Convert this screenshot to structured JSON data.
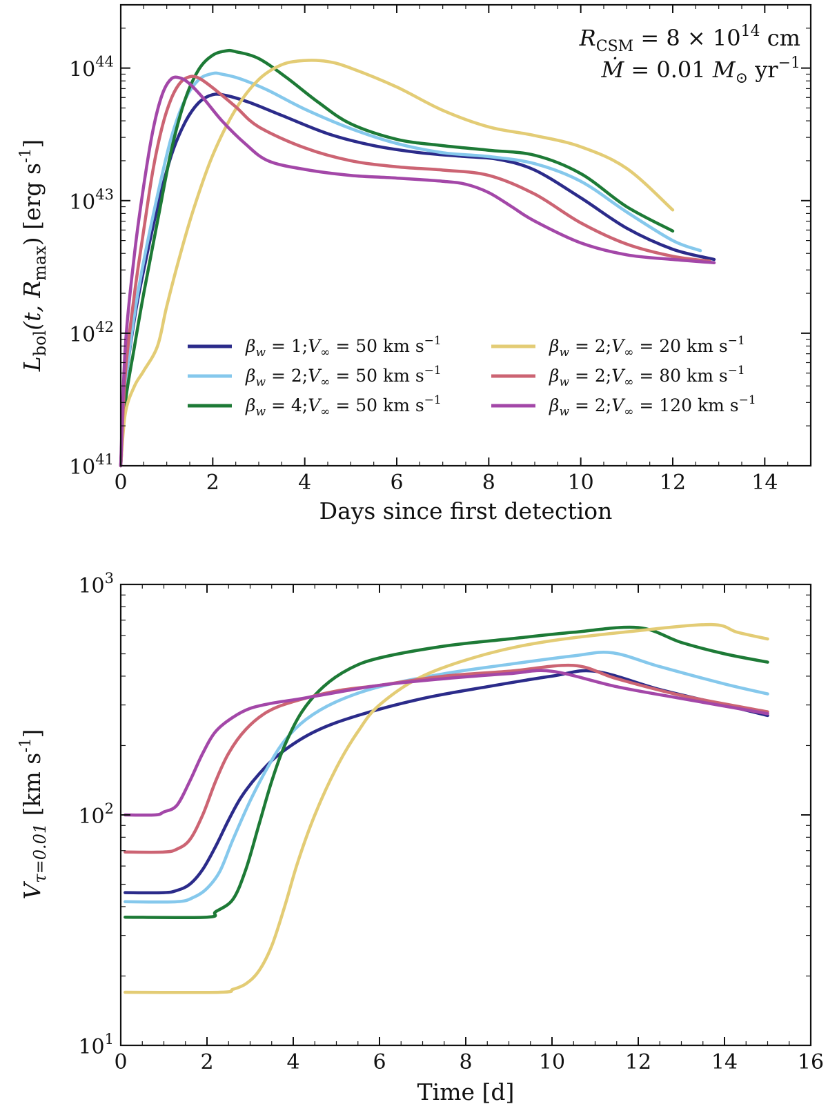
{
  "chart_data": [
    {
      "type": "line",
      "panel": "top",
      "xlabel": "Days since first detection",
      "ylabel": "L_bol(t, R_max) [erg s^-1]",
      "ylabel_parts": {
        "main": "L",
        "sub": "bol",
        "args": "(t, R",
        "args_sub": "max",
        "unit": ") [erg s",
        "exp": "-1",
        "close": "]"
      },
      "xlim": [
        0,
        15
      ],
      "ylim": [
        1e+41,
        3e+44
      ],
      "yscale": "log",
      "x_ticks": [
        0,
        2,
        4,
        6,
        8,
        10,
        12,
        14
      ],
      "x_tick_labels": [
        "0",
        "2",
        "4",
        "6",
        "8",
        "10",
        "12",
        "14"
      ],
      "y_ticks": [
        {
          "value": 1e+41,
          "base": "10",
          "exp": "41"
        },
        {
          "value": 1e+42,
          "base": "10",
          "exp": "42"
        },
        {
          "value": 1e+43,
          "base": "10",
          "exp": "43"
        },
        {
          "value": 1e+44,
          "base": "10",
          "exp": "44"
        }
      ],
      "annotations": [
        {
          "main": "R",
          "sub": "CSM",
          "text": " = 8 × 10",
          "sup": "14",
          "tail": " cm"
        },
        {
          "main": "Ṁ",
          "text": " = 0.01 ",
          "main2": "M",
          "sub": "⊙",
          "tail": " yr",
          "sup": "−1"
        }
      ],
      "legend_placement": "lower-center",
      "series": [
        {
          "name": "β_w = 1; V_∞ = 50 km s^-1",
          "label": {
            "beta": "1",
            "v": "50"
          },
          "color": "#2b2b8a",
          "x": [
            0,
            0.1,
            0.3,
            0.5,
            0.8,
            1.1,
            1.4,
            1.7,
            2.0,
            2.3,
            2.8,
            3.5,
            4.5,
            5.5,
            6.5,
            7.5,
            8.2,
            9.0,
            10.0,
            11.0,
            12.0,
            12.9
          ],
          "y": [
            1e+41,
            4e+41,
            1.3e+42,
            3e+42,
            9e+42,
            2.2e+43,
            3.9e+43,
            5.5e+43,
            6.3e+43,
            6.2e+43,
            5.5e+43,
            4.4e+43,
            3.2e+43,
            2.6e+43,
            2.3e+43,
            2.15e+43,
            2.05e+43,
            1.7e+43,
            1.05e+43,
            6.2e+42,
            4.3e+42,
            3.6e+42
          ]
        },
        {
          "name": "β_w = 2; V_∞ = 50 km s^-1",
          "label": {
            "beta": "2",
            "v": "50"
          },
          "color": "#85c8ec",
          "x": [
            0,
            0.1,
            0.3,
            0.5,
            0.8,
            1.1,
            1.4,
            1.7,
            2.0,
            2.2,
            2.6,
            3.2,
            4.0,
            5.0,
            6.0,
            7.0,
            8.0,
            9.0,
            10.0,
            11.0,
            12.0,
            12.6
          ],
          "y": [
            1e+41,
            4e+41,
            1.4e+42,
            3.5e+42,
            1.1e+43,
            3e+43,
            5.8e+43,
            8.2e+43,
            9.1e+43,
            9e+43,
            8.3e+43,
            6.8e+43,
            4.9e+43,
            3.5e+43,
            2.7e+43,
            2.3e+43,
            2.15e+43,
            1.9e+43,
            1.4e+43,
            8.2e+42,
            5e+42,
            4.2e+42
          ]
        },
        {
          "name": "β_w = 4; V_∞ = 50 km s^-1",
          "label": {
            "beta": "4",
            "v": "50"
          },
          "color": "#1d7a36",
          "x": [
            0,
            0.1,
            0.3,
            0.5,
            0.8,
            1.1,
            1.4,
            1.7,
            2.0,
            2.3,
            2.5,
            3.0,
            3.6,
            4.3,
            5.0,
            6.0,
            7.0,
            8.0,
            9.0,
            10.0,
            11.0,
            12.0
          ],
          "y": [
            1e+41,
            3e+41,
            8e+41,
            2e+42,
            7e+42,
            2.4e+43,
            5.8e+43,
            9.8e+43,
            1.25e+44,
            1.35e+44,
            1.33e+44,
            1.18e+44,
            8.5e+43,
            5.5e+43,
            3.8e+43,
            2.9e+43,
            2.6e+43,
            2.4e+43,
            2.2e+43,
            1.6e+43,
            9e+42,
            5.9e+42
          ]
        },
        {
          "name": "β_w = 2; V_∞ = 20 km s^-1",
          "label": {
            "beta": "2",
            "v": "20"
          },
          "color": "#e3cc75",
          "x": [
            0,
            0.1,
            0.3,
            0.5,
            0.8,
            1.0,
            1.3,
            1.6,
            2.0,
            2.5,
            3.0,
            3.5,
            4.0,
            4.5,
            5.0,
            6.0,
            7.0,
            8.0,
            9.0,
            10.0,
            11.0,
            12.0
          ],
          "y": [
            1e+41,
            2.5e+41,
            4e+41,
            5.2e+41,
            8e+41,
            1.6e+42,
            4e+42,
            9e+42,
            2.2e+43,
            4.9e+43,
            8.2e+43,
            1.06e+44,
            1.14e+44,
            1.12e+44,
            1e+44,
            7.2e+43,
            4.8e+43,
            3.6e+43,
            3.1e+43,
            2.55e+43,
            1.75e+43,
            8.5e+42
          ]
        },
        {
          "name": "β_w = 2; V_∞ = 80 km s^-1",
          "label": {
            "beta": "2",
            "v": "80"
          },
          "color": "#cc6473",
          "x": [
            0,
            0.1,
            0.3,
            0.5,
            0.7,
            0.9,
            1.1,
            1.3,
            1.5,
            1.7,
            2.0,
            2.5,
            3.0,
            4.0,
            5.0,
            6.0,
            7.0,
            8.0,
            9.0,
            10.0,
            11.0,
            12.0,
            12.8
          ],
          "y": [
            1e+41,
            5e+41,
            2e+42,
            6e+42,
            1.7e+43,
            3.6e+43,
            5.9e+43,
            7.8e+43,
            8.6e+43,
            8.4e+43,
            7.1e+43,
            5.1e+43,
            3.6e+43,
            2.5e+43,
            2e+43,
            1.8e+43,
            1.7e+43,
            1.55e+43,
            1.12e+43,
            6.8e+42,
            4.7e+42,
            3.8e+42,
            3.5e+42
          ]
        },
        {
          "name": "β_w = 2; V_∞ = 120 km s^-1",
          "label": {
            "beta": "2",
            "v": "120"
          },
          "color": "#a347a8",
          "x": [
            0,
            0.1,
            0.3,
            0.5,
            0.7,
            0.9,
            1.1,
            1.3,
            1.5,
            1.8,
            2.2,
            2.7,
            3.2,
            4.0,
            5.0,
            6.0,
            7.0,
            7.5,
            8.0,
            8.5,
            9.0,
            10.0,
            11.0,
            12.0,
            12.9
          ],
          "y": [
            1e+41,
            8e+41,
            4e+42,
            1.3e+43,
            3.4e+43,
            6.3e+43,
            8.3e+43,
            8.4e+43,
            7.6e+43,
            5.9e+43,
            4e+43,
            2.7e+43,
            2e+43,
            1.72e+43,
            1.55e+43,
            1.48e+43,
            1.4e+43,
            1.33e+43,
            1.15e+43,
            9e+42,
            7e+42,
            4.8e+42,
            3.9e+42,
            3.6e+42,
            3.4e+42
          ]
        }
      ]
    },
    {
      "type": "line",
      "panel": "bottom",
      "xlabel": "Time [d]",
      "ylabel": "V_τ=0.01 [km s^-1]",
      "ylabel_parts": {
        "main": "V",
        "sub": "τ=0.01",
        "unit": " [km s",
        "exp": "-1",
        "close": "]"
      },
      "xlim": [
        0,
        16
      ],
      "ylim": [
        10,
        1000
      ],
      "yscale": "log",
      "x_ticks": [
        0,
        2,
        4,
        6,
        8,
        10,
        12,
        14,
        16
      ],
      "x_tick_labels": [
        "0",
        "2",
        "4",
        "6",
        "8",
        "10",
        "12",
        "14",
        "16"
      ],
      "y_ticks": [
        {
          "value": 10,
          "base": "10",
          "exp": "1"
        },
        {
          "value": 100,
          "base": "10",
          "exp": "2"
        },
        {
          "value": 1000,
          "base": "10",
          "exp": "3"
        }
      ],
      "series": [
        {
          "name": "β_w = 1; V_∞ = 50 km s^-1",
          "color": "#2b2b8a",
          "x": [
            0.1,
            1.0,
            1.3,
            1.6,
            1.9,
            2.2,
            2.5,
            2.8,
            3.2,
            3.7,
            4.5,
            5.5,
            7.0,
            8.5,
            10.0,
            11.0,
            12.5,
            14.0,
            15.0
          ],
          "y": [
            46,
            46,
            47,
            50,
            58,
            73,
            95,
            120,
            150,
            185,
            230,
            270,
            320,
            360,
            400,
            420,
            350,
            300,
            270
          ]
        },
        {
          "name": "β_w = 2; V_∞ = 50 km s^-1",
          "color": "#85c8ec",
          "x": [
            0.1,
            1.3,
            1.7,
            2.0,
            2.3,
            2.6,
            3.0,
            3.4,
            3.8,
            4.3,
            5.0,
            6.0,
            7.5,
            9.0,
            10.5,
            11.4,
            12.5,
            14.0,
            15.0
          ],
          "y": [
            42,
            42,
            44,
            48,
            57,
            78,
            115,
            160,
            210,
            260,
            310,
            360,
            410,
            450,
            490,
            505,
            440,
            370,
            335
          ]
        },
        {
          "name": "β_w = 4; V_∞ = 50 km s^-1",
          "color": "#1d7a36",
          "x": [
            0.1,
            2.0,
            2.2,
            2.6,
            2.9,
            3.2,
            3.5,
            3.8,
            4.2,
            4.7,
            5.3,
            6.0,
            7.5,
            9.0,
            10.5,
            12.0,
            13.0,
            14.0,
            15.0
          ],
          "y": [
            36,
            36,
            38,
            43,
            58,
            90,
            140,
            200,
            280,
            360,
            430,
            480,
            540,
            580,
            620,
            650,
            560,
            500,
            460
          ]
        },
        {
          "name": "β_w = 2; V_∞ = 20 km s^-1",
          "color": "#e3cc75",
          "x": [
            0.1,
            2.3,
            2.6,
            2.9,
            3.2,
            3.5,
            3.8,
            4.1,
            4.5,
            5.0,
            5.5,
            6.0,
            7.0,
            8.5,
            10.0,
            12.0,
            13.7,
            14.3,
            15.0
          ],
          "y": [
            17,
            17,
            17.5,
            18.5,
            21,
            27,
            40,
            62,
            100,
            160,
            230,
            300,
            400,
            500,
            570,
            630,
            670,
            620,
            580
          ]
        },
        {
          "name": "β_w = 2; V_∞ = 80 km s^-1",
          "color": "#cc6473",
          "x": [
            0.1,
            1.0,
            1.3,
            1.6,
            1.9,
            2.2,
            2.5,
            2.9,
            3.4,
            4.0,
            5.0,
            6.0,
            7.5,
            9.0,
            10.5,
            11.5,
            13.0,
            15.0
          ],
          "y": [
            69,
            69,
            71,
            78,
            100,
            140,
            185,
            235,
            280,
            310,
            345,
            365,
            400,
            420,
            445,
            390,
            330,
            280
          ]
        },
        {
          "name": "β_w = 2; V_∞ = 120 km s^-1",
          "color": "#a347a8",
          "x": [
            0.1,
            0.8,
            1.0,
            1.3,
            1.6,
            1.9,
            2.2,
            2.6,
            3.0,
            3.5,
            4.2,
            5.0,
            6.0,
            7.5,
            9.0,
            10.0,
            11.5,
            13.0,
            15.0
          ],
          "y": [
            100,
            100,
            103,
            110,
            140,
            185,
            230,
            265,
            290,
            305,
            320,
            340,
            365,
            390,
            410,
            420,
            360,
            320,
            275
          ]
        }
      ]
    }
  ]
}
